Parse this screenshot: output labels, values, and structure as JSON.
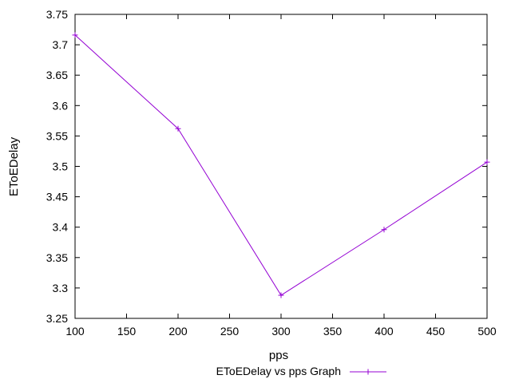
{
  "chart_data": {
    "type": "line",
    "title": "",
    "xlabel": "pps",
    "ylabel": "EToEDelay",
    "xlim": [
      100,
      500
    ],
    "ylim": [
      3.25,
      3.75
    ],
    "x_ticks": [
      100,
      150,
      200,
      250,
      300,
      350,
      400,
      450,
      500
    ],
    "y_ticks": [
      3.25,
      3.3,
      3.35,
      3.4,
      3.45,
      3.5,
      3.55,
      3.6,
      3.65,
      3.7,
      3.75
    ],
    "x_tick_labels": [
      "100",
      "150",
      "200",
      "250",
      "300",
      "350",
      "400",
      "450",
      "500"
    ],
    "y_tick_labels": [
      "3.25",
      "3.3",
      "3.35",
      "3.4",
      "3.45",
      "3.5",
      "3.55",
      "3.6",
      "3.65",
      "3.7",
      "3.75"
    ],
    "grid": false,
    "legend_position": "bottom-center",
    "series": [
      {
        "name": "EToEDelay vs pps Graph",
        "color": "#9400d3",
        "marker": "plus",
        "x": [
          100,
          200,
          300,
          400,
          500
        ],
        "y": [
          3.716,
          3.562,
          3.288,
          3.396,
          3.507
        ]
      }
    ]
  }
}
